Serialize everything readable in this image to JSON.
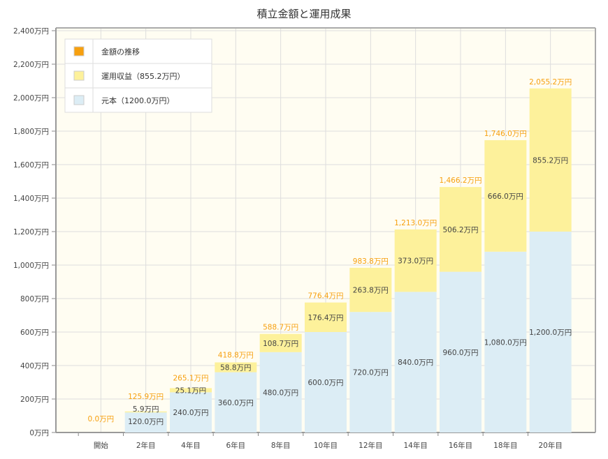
{
  "chart_data": {
    "type": "bar",
    "stacked": true,
    "title": "積立金額と運用成果",
    "categories": [
      "開始",
      "2年目",
      "4年目",
      "6年目",
      "8年目",
      "10年目",
      "12年目",
      "14年目",
      "16年目",
      "18年目",
      "20年目"
    ],
    "series": [
      {
        "name": "元本（1200.0万円）",
        "color": "#dcedf5",
        "values": [
          0,
          120,
          240,
          360,
          480,
          600,
          720,
          840,
          960,
          1080,
          1200
        ],
        "labels": [
          "",
          "120.0万円",
          "240.0万円",
          "360.0万円",
          "480.0万円",
          "600.0万円",
          "720.0万円",
          "840.0万円",
          "960.0万円",
          "1,080.0万円",
          "1,200.0万円"
        ]
      },
      {
        "name": "運用収益（855.2万円）",
        "color": "#fdf19b",
        "values": [
          0,
          5.9,
          25.1,
          58.8,
          108.7,
          176.4,
          263.8,
          373.0,
          506.2,
          666.0,
          855.2
        ],
        "labels": [
          "",
          "5.9万円",
          "25.1万円",
          "58.8万円",
          "108.7万円",
          "176.4万円",
          "263.8万円",
          "373.0万円",
          "506.2万円",
          "666.0万円",
          "855.2万円"
        ]
      }
    ],
    "totals": {
      "name": "金額の推移",
      "color": "#f7a00f",
      "values": [
        0.0,
        125.9,
        265.1,
        418.8,
        588.7,
        776.4,
        983.8,
        1213.0,
        1466.2,
        1746.0,
        2055.2
      ],
      "labels": [
        "0.0万円",
        "125.9万円",
        "265.1万円",
        "418.8万円",
        "588.7万円",
        "776.4万円",
        "983.8万円",
        "1,213.0万円",
        "1,466.2万円",
        "1,746.0万円",
        "2,055.2万円"
      ]
    },
    "ylim": [
      0,
      2400
    ],
    "yticks": [
      0,
      200,
      400,
      600,
      800,
      1000,
      1200,
      1400,
      1600,
      1800,
      2000,
      2200,
      2400
    ],
    "ytick_labels": [
      "0万円",
      "200万円",
      "400万円",
      "600万円",
      "800万円",
      "1,000万円",
      "1,200万円",
      "1,400万円",
      "1,600万円",
      "1,800万円",
      "2,000万円",
      "2,200万円",
      "2,400万円"
    ],
    "grid": true,
    "legend_placement": "top-left",
    "legend": [
      "金額の推移",
      "運用収益（855.2万円）",
      "元本（1200.0万円）"
    ]
  }
}
